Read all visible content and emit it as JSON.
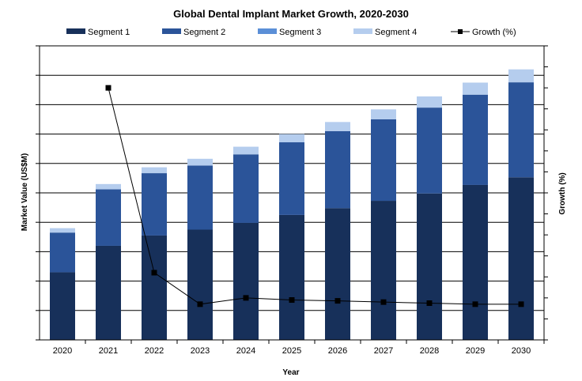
{
  "chart_data": {
    "type": "bar",
    "stacked": true,
    "title": "Global Dental Implant Market Growth, 2020-2030",
    "xlabel": "Year",
    "ylabel": "Market Value (US$M)",
    "y2label": "Growth (%)",
    "categories": [
      "2020",
      "2021",
      "2022",
      "2023",
      "2024",
      "2025",
      "2026",
      "2027",
      "2028",
      "2029",
      "2030"
    ],
    "series": [
      {
        "name": "Segment 1",
        "color": "#17305a",
        "values": [
          2.3,
          3.2,
          3.55,
          3.75,
          3.98,
          4.25,
          4.48,
          4.73,
          4.98,
          5.27,
          5.53
        ]
      },
      {
        "name": "Segment 2",
        "color": "#2b5499",
        "values": [
          1.35,
          1.92,
          2.12,
          2.18,
          2.33,
          2.47,
          2.62,
          2.77,
          2.92,
          3.07,
          3.23
        ]
      },
      {
        "name": "Segment 3",
        "color": "#5b8fd7",
        "values": [
          0.0,
          0.0,
          0.0,
          0.0,
          0.0,
          0.0,
          0.0,
          0.0,
          0.0,
          0.0,
          0.0
        ]
      },
      {
        "name": "Segment 4",
        "color": "#b5cdee",
        "values": [
          0.15,
          0.18,
          0.2,
          0.23,
          0.26,
          0.28,
          0.31,
          0.34,
          0.38,
          0.41,
          0.44
        ]
      }
    ],
    "line_series": {
      "name": "Growth (%)",
      "color": "#000000",
      "values": [
        null,
        1.2,
        0.32,
        0.17,
        0.2,
        0.19,
        0.186,
        0.18,
        0.175,
        0.17,
        0.17
      ]
    },
    "ylim": [
      0,
      10
    ],
    "y2lim": [
      0,
      1.4
    ],
    "legend_position": "top",
    "grid": true
  }
}
